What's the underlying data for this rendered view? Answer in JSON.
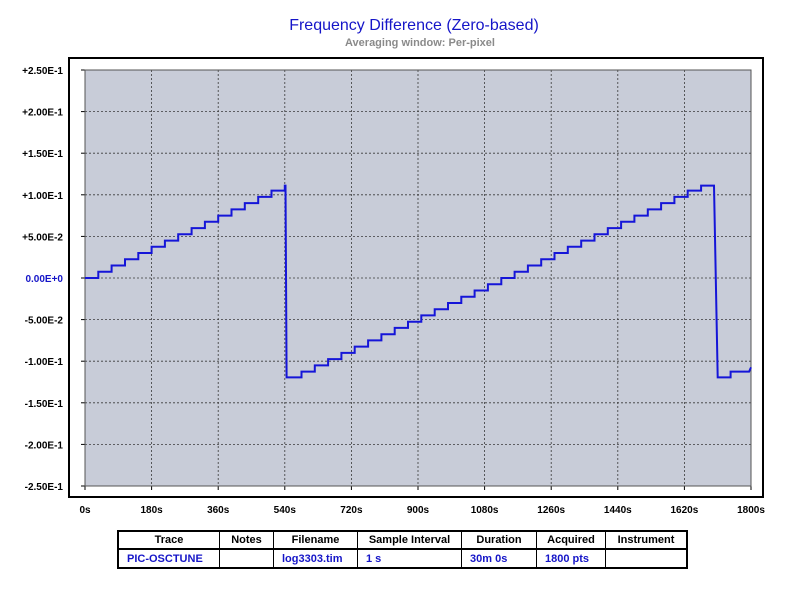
{
  "chart_data": {
    "type": "line",
    "title": "Frequency Difference (Zero-based)",
    "subtitle": "Averaging window: Per-pixel",
    "xlabel": "",
    "ylabel": "",
    "xlim": [
      0,
      1800
    ],
    "ylim": [
      -0.25,
      0.25
    ],
    "grid": true,
    "x_ticks": [
      "0s",
      "180s",
      "360s",
      "540s",
      "720s",
      "900s",
      "1080s",
      "1260s",
      "1440s",
      "1620s",
      "1800s"
    ],
    "y_ticks": [
      "+2.50E-1",
      "+2.00E-1",
      "+1.50E-1",
      "+1.00E-1",
      "+5.00E-2",
      "0.00E+0",
      "-5.00E-2",
      "-1.00E-1",
      "-1.50E-1",
      "-2.00E-1",
      "-2.50E-1"
    ],
    "series": [
      {
        "color": "#1515d8",
        "points": [
          [
            0,
            0.0
          ],
          [
            36,
            0.0
          ],
          [
            36,
            0.0075
          ],
          [
            72,
            0.0075
          ],
          [
            72,
            0.015
          ],
          [
            108,
            0.015
          ],
          [
            108,
            0.0225
          ],
          [
            144,
            0.0225
          ],
          [
            144,
            0.03
          ],
          [
            180,
            0.03
          ],
          [
            180,
            0.0375
          ],
          [
            216,
            0.0375
          ],
          [
            216,
            0.045
          ],
          [
            252,
            0.045
          ],
          [
            252,
            0.0525
          ],
          [
            288,
            0.0525
          ],
          [
            288,
            0.06
          ],
          [
            324,
            0.06
          ],
          [
            324,
            0.0675
          ],
          [
            360,
            0.0675
          ],
          [
            360,
            0.075
          ],
          [
            396,
            0.075
          ],
          [
            396,
            0.0825
          ],
          [
            432,
            0.0825
          ],
          [
            432,
            0.09
          ],
          [
            468,
            0.09
          ],
          [
            468,
            0.0975
          ],
          [
            504,
            0.0975
          ],
          [
            504,
            0.105
          ],
          [
            540,
            0.105
          ],
          [
            540,
            0.111
          ],
          [
            542,
            0.111
          ],
          [
            542,
            0.111
          ],
          [
            545,
            -0.1195
          ],
          [
            585,
            -0.1195
          ],
          [
            585,
            -0.1125
          ],
          [
            621,
            -0.1125
          ],
          [
            621,
            -0.105
          ],
          [
            657,
            -0.105
          ],
          [
            657,
            -0.0975
          ],
          [
            693,
            -0.0975
          ],
          [
            693,
            -0.09
          ],
          [
            729,
            -0.09
          ],
          [
            729,
            -0.0825
          ],
          [
            765,
            -0.0825
          ],
          [
            765,
            -0.075
          ],
          [
            801,
            -0.075
          ],
          [
            801,
            -0.0675
          ],
          [
            837,
            -0.0675
          ],
          [
            837,
            -0.06
          ],
          [
            873,
            -0.06
          ],
          [
            873,
            -0.0525
          ],
          [
            909,
            -0.0525
          ],
          [
            909,
            -0.045
          ],
          [
            945,
            -0.045
          ],
          [
            945,
            -0.0375
          ],
          [
            981,
            -0.0375
          ],
          [
            981,
            -0.03
          ],
          [
            1017,
            -0.03
          ],
          [
            1017,
            -0.0225
          ],
          [
            1053,
            -0.0225
          ],
          [
            1053,
            -0.015
          ],
          [
            1089,
            -0.015
          ],
          [
            1089,
            -0.0075
          ],
          [
            1125,
            -0.0075
          ],
          [
            1125,
            0.0
          ],
          [
            1161,
            0.0
          ],
          [
            1161,
            0.0075
          ],
          [
            1197,
            0.0075
          ],
          [
            1197,
            0.015
          ],
          [
            1233,
            0.015
          ],
          [
            1233,
            0.0225
          ],
          [
            1269,
            0.0225
          ],
          [
            1269,
            0.03
          ],
          [
            1305,
            0.03
          ],
          [
            1305,
            0.0375
          ],
          [
            1341,
            0.0375
          ],
          [
            1341,
            0.045
          ],
          [
            1377,
            0.045
          ],
          [
            1377,
            0.0525
          ],
          [
            1413,
            0.0525
          ],
          [
            1413,
            0.06
          ],
          [
            1449,
            0.06
          ],
          [
            1449,
            0.0675
          ],
          [
            1485,
            0.0675
          ],
          [
            1485,
            0.075
          ],
          [
            1521,
            0.075
          ],
          [
            1521,
            0.0825
          ],
          [
            1557,
            0.0825
          ],
          [
            1557,
            0.09
          ],
          [
            1593,
            0.09
          ],
          [
            1593,
            0.0975
          ],
          [
            1629,
            0.0975
          ],
          [
            1629,
            0.105
          ],
          [
            1665,
            0.105
          ],
          [
            1665,
            0.111
          ],
          [
            1700,
            0.111
          ],
          [
            1710,
            -0.1195
          ],
          [
            1745,
            -0.1195
          ],
          [
            1745,
            -0.1125
          ],
          [
            1795,
            -0.1125
          ],
          [
            1800,
            -0.1075
          ]
        ]
      }
    ]
  },
  "legend_table": {
    "headers": [
      "Trace",
      "Notes",
      "Filename",
      "Sample Interval",
      "Duration",
      "Acquired",
      "Instrument"
    ],
    "row": [
      "PIC-OSCTUNE",
      "",
      "log3303.tim",
      "1 s",
      "30m 0s",
      "1800 pts",
      ""
    ]
  },
  "colors": {
    "plot_bg": "#c8ccd8",
    "title": "#1515c8",
    "trace": "#1515d8",
    "grid": "#3a3a3a"
  }
}
